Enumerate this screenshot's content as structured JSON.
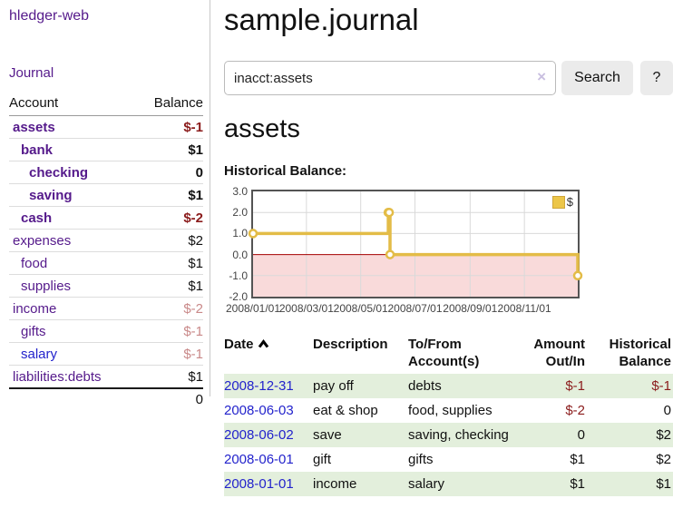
{
  "app": {
    "brand": "hledger-web",
    "nav_journal": "Journal"
  },
  "sidebar": {
    "header": {
      "account": "Account",
      "balance": "Balance"
    },
    "accounts": [
      {
        "name": "assets",
        "balance": "$-1",
        "depth": 1,
        "matched": true
      },
      {
        "name": "bank",
        "balance": "$1",
        "depth": 2,
        "matched": true
      },
      {
        "name": "checking",
        "balance": "0",
        "depth": 3,
        "matched": true
      },
      {
        "name": "saving",
        "balance": "$1",
        "depth": 3,
        "matched": true
      },
      {
        "name": "cash",
        "balance": "$-2",
        "depth": 2,
        "matched": true
      },
      {
        "name": "expenses",
        "balance": "$2",
        "depth": 1,
        "matched": false
      },
      {
        "name": "food",
        "balance": "$1",
        "depth": 2,
        "matched": false
      },
      {
        "name": "supplies",
        "balance": "$1",
        "depth": 2,
        "matched": false
      },
      {
        "name": "income",
        "balance": "$-2",
        "depth": 1,
        "matched": false
      },
      {
        "name": "gifts",
        "balance": "$-1",
        "depth": 2,
        "matched": false
      },
      {
        "name": "salary",
        "balance": "$-1",
        "depth": 2,
        "matched": false,
        "unvisited": true
      },
      {
        "name": "liabilities:debts",
        "balance": "$1",
        "depth": 1,
        "matched": false
      }
    ],
    "total": "0"
  },
  "main": {
    "title": "sample.journal",
    "search": {
      "value": "inacct:assets",
      "clear_icon": "×",
      "button": "Search",
      "help_button": "?"
    },
    "account_heading": "assets",
    "chart_label": "Historical Balance:",
    "register": {
      "columns": {
        "date": "Date",
        "description": "Description",
        "accounts": "To/From Account(s)",
        "amount": "Amount Out/In",
        "balance": "Historical Balance"
      },
      "sort": "date-ascending",
      "rows": [
        {
          "date": "2008-12-31",
          "description": "pay off",
          "accounts": "debts",
          "amount": "$-1",
          "balance": "$-1"
        },
        {
          "date": "2008-06-03",
          "description": "eat & shop",
          "accounts": "food, supplies",
          "amount": "$-2",
          "balance": "0"
        },
        {
          "date": "2008-06-02",
          "description": "save",
          "accounts": "saving, checking",
          "amount": "0",
          "balance": "$2"
        },
        {
          "date": "2008-06-01",
          "description": "gift",
          "accounts": "gifts",
          "amount": "$1",
          "balance": "$2"
        },
        {
          "date": "2008-01-01",
          "description": "income",
          "accounts": "salary",
          "amount": "$1",
          "balance": "$1"
        }
      ]
    }
  },
  "chart_data": {
    "type": "line",
    "step": true,
    "title": "Historical Balance",
    "legend_position": "top-right",
    "legend": [
      {
        "label": "$",
        "color": "#ecc649"
      }
    ],
    "x_range": [
      "2008-01-01",
      "2008-12-31"
    ],
    "ylim": [
      -2,
      3
    ],
    "y_ticks": [
      3.0,
      2.0,
      1.0,
      0.0,
      -1.0,
      -2.0
    ],
    "x_ticks": [
      "2008/01/01",
      "2008/03/01",
      "2008/05/01",
      "2008/07/01",
      "2008/09/01",
      "2008/11/01"
    ],
    "series": [
      {
        "name": "$",
        "points": [
          [
            "2008-01-01",
            1
          ],
          [
            "2008-06-01",
            2
          ],
          [
            "2008-06-02",
            2
          ],
          [
            "2008-06-03",
            0
          ],
          [
            "2008-12-31",
            -1
          ]
        ]
      }
    ],
    "colors": {
      "line": "#e3bc47",
      "marker_fill": "#ffffff",
      "grid": "#d9d9d9",
      "zero_line": "#a40000",
      "negative_region": "#f9dada",
      "border": "#545454"
    },
    "marker": "open-circle",
    "grid": true
  }
}
